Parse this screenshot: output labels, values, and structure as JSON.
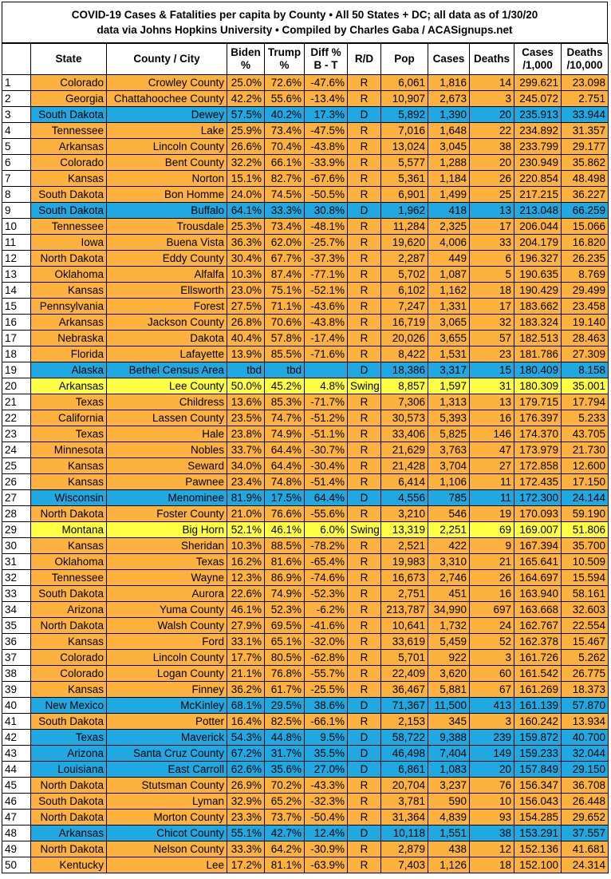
{
  "title": {
    "line1": "COVID-19 Cases & Fatalities per capita by County • All 50 States + DC; all data as of 1/30/20",
    "line2": "data via Johns Hopkins University • Compiled by Charles Gaba / ACASignups.net"
  },
  "table": {
    "fills": {
      "R": "#fdb13f",
      "D": "#1fa8e1",
      "Swing": "#ffff43"
    },
    "header": [
      "",
      "State",
      "County / City",
      "Biden\n%",
      "Trump\n%",
      "Diff %\nB - T",
      "R/D",
      "Pop",
      "Cases",
      "Deaths",
      "Cases\n/1,000",
      "Deaths\n/10,000"
    ],
    "rows": [
      [
        "1",
        "Colorado",
        "Crowley County",
        "25.0%",
        "72.6%",
        "-47.6%",
        "R",
        "6,061",
        "1,816",
        "14",
        "299.621",
        "23.098"
      ],
      [
        "2",
        "Georgia",
        "Chattahoochee County",
        "42.2%",
        "55.6%",
        "-13.4%",
        "R",
        "10,907",
        "2,673",
        "3",
        "245.072",
        "2.751"
      ],
      [
        "3",
        "South Dakota",
        "Dewey",
        "57.5%",
        "40.2%",
        "17.3%",
        "D",
        "5,892",
        "1,390",
        "20",
        "235.913",
        "33.944"
      ],
      [
        "4",
        "Tennessee",
        "Lake",
        "25.9%",
        "73.4%",
        "-47.5%",
        "R",
        "7,016",
        "1,648",
        "22",
        "234.892",
        "31.357"
      ],
      [
        "5",
        "Arkansas",
        "Lincoln County",
        "26.6%",
        "70.4%",
        "-43.8%",
        "R",
        "13,024",
        "3,045",
        "38",
        "233.799",
        "29.177"
      ],
      [
        "6",
        "Colorado",
        "Bent County",
        "32.2%",
        "66.1%",
        "-33.9%",
        "R",
        "5,577",
        "1,288",
        "20",
        "230.949",
        "35.862"
      ],
      [
        "7",
        "Kansas",
        "Norton",
        "15.1%",
        "82.7%",
        "-67.6%",
        "R",
        "5,361",
        "1,184",
        "26",
        "220.854",
        "48.498"
      ],
      [
        "8",
        "South Dakota",
        "Bon Homme",
        "24.0%",
        "74.5%",
        "-50.5%",
        "R",
        "6,901",
        "1,499",
        "25",
        "217.215",
        "36.227"
      ],
      [
        "9",
        "South Dakota",
        "Buffalo",
        "64.1%",
        "33.3%",
        "30.8%",
        "D",
        "1,962",
        "418",
        "13",
        "213.048",
        "66.259"
      ],
      [
        "10",
        "Tennessee",
        "Trousdale",
        "25.3%",
        "73.4%",
        "-48.1%",
        "R",
        "11,284",
        "2,325",
        "17",
        "206.044",
        "15.066"
      ],
      [
        "11",
        "Iowa",
        "Buena Vista",
        "36.3%",
        "62.0%",
        "-25.7%",
        "R",
        "19,620",
        "4,006",
        "33",
        "204.179",
        "16.820"
      ],
      [
        "12",
        "North Dakota",
        "Eddy County",
        "30.4%",
        "67.7%",
        "-37.3%",
        "R",
        "2,287",
        "449",
        "6",
        "196.327",
        "26.235"
      ],
      [
        "13",
        "Oklahoma",
        "Alfalfa",
        "10.3%",
        "87.4%",
        "-77.1%",
        "R",
        "5,702",
        "1,087",
        "5",
        "190.635",
        "8.769"
      ],
      [
        "14",
        "Kansas",
        "Ellsworth",
        "23.0%",
        "75.1%",
        "-52.1%",
        "R",
        "6,102",
        "1,162",
        "18",
        "190.429",
        "29.499"
      ],
      [
        "15",
        "Pennsylvania",
        "Forest",
        "27.5%",
        "71.1%",
        "-43.6%",
        "R",
        "7,247",
        "1,331",
        "17",
        "183.662",
        "23.458"
      ],
      [
        "16",
        "Arkansas",
        "Jackson County",
        "26.8%",
        "70.6%",
        "-43.8%",
        "R",
        "16,719",
        "3,065",
        "32",
        "183.324",
        "19.140"
      ],
      [
        "17",
        "Nebraska",
        "Dakota",
        "40.4%",
        "57.8%",
        "-17.4%",
        "R",
        "20,026",
        "3,655",
        "57",
        "182.513",
        "28.463"
      ],
      [
        "18",
        "Florida",
        "Lafayette",
        "13.9%",
        "85.5%",
        "-71.6%",
        "R",
        "8,422",
        "1,531",
        "23",
        "181.786",
        "27.309"
      ],
      [
        "19",
        "Alaska",
        "Bethel Census Area",
        "tbd",
        "tbd",
        null,
        "D",
        "18,386",
        "3,317",
        "15",
        "180.409",
        "8.158"
      ],
      [
        "20",
        "Arkansas",
        "Lee County",
        "50.0%",
        "45.2%",
        "4.8%",
        "Swing",
        "8,857",
        "1,597",
        "31",
        "180.309",
        "35.001"
      ],
      [
        "21",
        "Texas",
        "Childress",
        "13.6%",
        "85.3%",
        "-71.7%",
        "R",
        "7,306",
        "1,313",
        "13",
        "179.715",
        "17.794"
      ],
      [
        "22",
        "California",
        "Lassen County",
        "23.5%",
        "74.7%",
        "-51.2%",
        "R",
        "30,573",
        "5,393",
        "16",
        "176.397",
        "5.233"
      ],
      [
        "23",
        "Texas",
        "Hale",
        "23.8%",
        "74.9%",
        "-51.1%",
        "R",
        "33,406",
        "5,825",
        "146",
        "174.370",
        "43.705"
      ],
      [
        "24",
        "Minnesota",
        "Nobles",
        "33.7%",
        "64.4%",
        "-30.7%",
        "R",
        "21,629",
        "3,763",
        "47",
        "173.979",
        "21.730"
      ],
      [
        "25",
        "Kansas",
        "Seward",
        "34.0%",
        "64.4%",
        "-30.4%",
        "R",
        "21,428",
        "3,704",
        "27",
        "172.858",
        "12.600"
      ],
      [
        "26",
        "Kansas",
        "Pawnee",
        "23.4%",
        "74.8%",
        "-51.4%",
        "R",
        "6,414",
        "1,106",
        "11",
        "172.435",
        "17.150"
      ],
      [
        "27",
        "Wisconsin",
        "Menominee",
        "81.9%",
        "17.5%",
        "64.4%",
        "D",
        "4,556",
        "785",
        "11",
        "172.300",
        "24.144"
      ],
      [
        "28",
        "North Dakota",
        "Foster County",
        "21.0%",
        "76.6%",
        "-55.6%",
        "R",
        "3,210",
        "546",
        "19",
        "170.093",
        "59.190"
      ],
      [
        "29",
        "Montana",
        "Big Horn",
        "52.1%",
        "46.1%",
        "6.0%",
        "Swing",
        "13,319",
        "2,251",
        "69",
        "169.007",
        "51.806"
      ],
      [
        "30",
        "Kansas",
        "Sheridan",
        "10.3%",
        "88.5%",
        "-78.2%",
        "R",
        "2,521",
        "422",
        "9",
        "167.394",
        "35.700"
      ],
      [
        "31",
        "Oklahoma",
        "Texas",
        "16.2%",
        "81.6%",
        "-65.4%",
        "R",
        "19,983",
        "3,310",
        "21",
        "165.641",
        "10.509"
      ],
      [
        "32",
        "Tennessee",
        "Wayne",
        "12.3%",
        "86.9%",
        "-74.6%",
        "R",
        "16,673",
        "2,746",
        "26",
        "164.697",
        "15.594"
      ],
      [
        "33",
        "South Dakota",
        "Aurora",
        "22.6%",
        "74.9%",
        "-52.3%",
        "R",
        "2,751",
        "451",
        "16",
        "163.940",
        "58.161"
      ],
      [
        "34",
        "Arizona",
        "Yuma County",
        "46.1%",
        "52.3%",
        "-6.2%",
        "R",
        "213,787",
        "34,990",
        "697",
        "163.668",
        "32.603"
      ],
      [
        "35",
        "North Dakota",
        "Walsh County",
        "27.9%",
        "69.5%",
        "-41.6%",
        "R",
        "10,641",
        "1,732",
        "24",
        "162.767",
        "22.554"
      ],
      [
        "36",
        "Kansas",
        "Ford",
        "33.1%",
        "65.1%",
        "-32.0%",
        "R",
        "33,619",
        "5,459",
        "52",
        "162.378",
        "15.467"
      ],
      [
        "37",
        "Colorado",
        "Lincoln County",
        "17.7%",
        "80.5%",
        "-62.8%",
        "R",
        "5,701",
        "922",
        "3",
        "161.726",
        "5.262"
      ],
      [
        "38",
        "Colorado",
        "Logan County",
        "21.1%",
        "76.8%",
        "-55.7%",
        "R",
        "22,409",
        "3,620",
        "60",
        "161.542",
        "26.775"
      ],
      [
        "39",
        "Kansas",
        "Finney",
        "36.2%",
        "61.7%",
        "-25.5%",
        "R",
        "36,467",
        "5,881",
        "67",
        "161.269",
        "18.373"
      ],
      [
        "40",
        "New Mexico",
        "McKinley",
        "68.1%",
        "29.5%",
        "38.6%",
        "D",
        "71,367",
        "11,500",
        "413",
        "161.139",
        "57.870"
      ],
      [
        "41",
        "South Dakota",
        "Potter",
        "16.4%",
        "82.5%",
        "-66.1%",
        "R",
        "2,153",
        "345",
        "3",
        "160.242",
        "13.934"
      ],
      [
        "42",
        "Texas",
        "Maverick",
        "54.3%",
        "44.8%",
        "9.5%",
        "D",
        "58,722",
        "9,388",
        "239",
        "159.872",
        "40.700"
      ],
      [
        "43",
        "Arizona",
        "Santa Cruz County",
        "67.2%",
        "31.7%",
        "35.5%",
        "D",
        "46,498",
        "7,404",
        "149",
        "159.233",
        "32.044"
      ],
      [
        "44",
        "Louisiana",
        "East Carroll",
        "62.6%",
        "35.6%",
        "27.0%",
        "D",
        "6,861",
        "1,083",
        "20",
        "157.849",
        "29.150"
      ],
      [
        "45",
        "North Dakota",
        "Stutsman County",
        "26.9%",
        "70.2%",
        "-43.3%",
        "R",
        "20,704",
        "3,237",
        "76",
        "156.347",
        "36.708"
      ],
      [
        "46",
        "South Dakota",
        "Lyman",
        "32.9%",
        "65.2%",
        "-32.3%",
        "R",
        "3,781",
        "590",
        "10",
        "156.043",
        "26.448"
      ],
      [
        "47",
        "North Dakota",
        "Morton County",
        "23.3%",
        "73.7%",
        "-50.4%",
        "R",
        "31,364",
        "4,839",
        "93",
        "154.285",
        "29.652"
      ],
      [
        "48",
        "Arkansas",
        "Chicot County",
        "55.1%",
        "42.7%",
        "12.4%",
        "D",
        "10,118",
        "1,551",
        "38",
        "153.291",
        "37.557"
      ],
      [
        "49",
        "North Dakota",
        "Nelson County",
        "33.3%",
        "64.2%",
        "-30.9%",
        "R",
        "2,879",
        "438",
        "12",
        "152.136",
        "41.681"
      ],
      [
        "50",
        "Kentucky",
        "Lee",
        "17.2%",
        "81.1%",
        "-63.9%",
        "R",
        "7,403",
        "1,126",
        "18",
        "152.100",
        "24.314"
      ]
    ]
  }
}
